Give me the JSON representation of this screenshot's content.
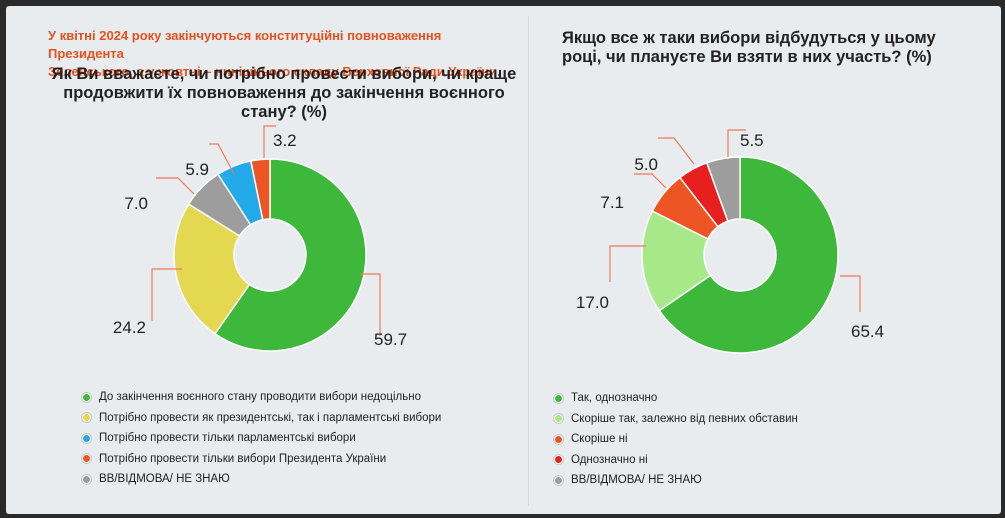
{
  "notice": {
    "line1": "У квітні 2024 року закінчуються конституційні повноваження Президента",
    "line2": "Зеленського, а у жовтні – нинішнього складу Верховної Ради України."
  },
  "left": {
    "question_lines": [
      "Як Ви вважаєте, чи потрібно провести вибори, чи краще",
      "продовжити їх повноваження до закінчення воєнного",
      "стану? (%)"
    ]
  },
  "right": {
    "question_lines": [
      "Якщо все ж таки вибори відбудуться у цьому",
      "році, чи плануєте Ви взяти в них участь? (%)"
    ]
  },
  "chart_data": [
    {
      "type": "pie",
      "variant": "donut",
      "title": "Як Ви вважаєте, чи потрібно провести вибори, чи краще продовжити їх повноваження до закінчення воєнного стану? (%)",
      "categories": [
        "До закінчення воєнного стану проводити вибори недоцільно",
        "Потрібно провести як президентські, так і парламентські вибори",
        "Потрібно провести тільки парламентські вибори",
        "Потрібно провести тільки вибори Президента України",
        "ВВ/ВІДМОВА/ НЕ ЗНАЮ"
      ],
      "values": [
        59.7,
        24.2,
        5.9,
        3.2,
        7.0
      ],
      "value_labels": [
        "59.7",
        "24.2",
        "5.9",
        "3.2",
        "7.0"
      ],
      "slice_order": [
        0,
        1,
        4,
        2,
        3
      ],
      "colors": [
        "#3db83a",
        "#e3d84f",
        "#22aaea",
        "#ee5524",
        "#9d9d9d"
      ],
      "legend_position": "bottom"
    },
    {
      "type": "pie",
      "variant": "donut",
      "title": "Якщо все ж таки вибори відбудуться у цьому році, чи плануєте Ви взяти в них участь? (%)",
      "categories": [
        "Так, однозначно",
        "Скоріше так, залежно від певних обставин",
        "Скоріше ні",
        "Однозначно ні",
        "ВВ/ВІДМОВА/ НЕ ЗНАЮ"
      ],
      "values": [
        65.4,
        17.0,
        7.1,
        5.0,
        5.5
      ],
      "value_labels": [
        "65.4",
        "17.0",
        "7.1",
        "5.0",
        "5.5"
      ],
      "slice_order": [
        0,
        1,
        2,
        3,
        4
      ],
      "colors": [
        "#3db83a",
        "#a7e889",
        "#ee5524",
        "#e81f1f",
        "#9d9d9d"
      ],
      "legend_position": "bottom"
    }
  ]
}
